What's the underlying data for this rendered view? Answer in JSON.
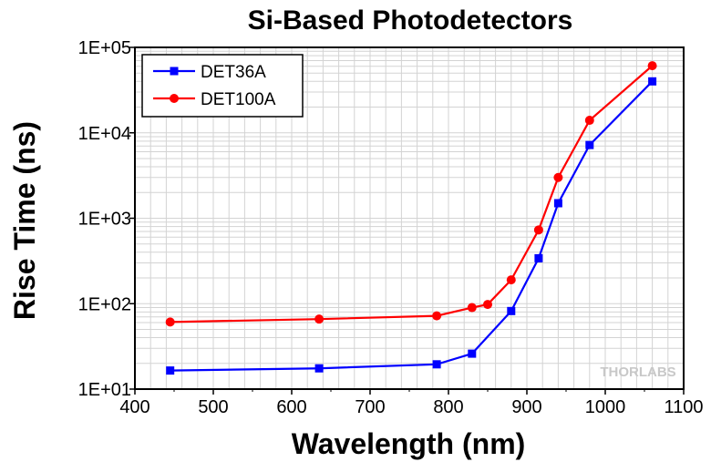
{
  "chart_data": {
    "type": "line",
    "title": "Si-Based Photodetectors",
    "xlabel": "Wavelength (nm)",
    "ylabel": "Rise Time (ns)",
    "xlim": [
      400,
      1100
    ],
    "ylim": [
      10,
      100000
    ],
    "yscale": "log",
    "grid": true,
    "legend_position": "top-left",
    "x_ticks": [
      400,
      500,
      600,
      700,
      800,
      900,
      1000,
      1100
    ],
    "y_ticks": [
      10,
      100,
      1000,
      10000,
      100000
    ],
    "y_tick_labels": [
      "1E+01",
      "1E+02",
      "1E+03",
      "1E+04",
      "1E+05"
    ],
    "series": [
      {
        "name": "DET36A",
        "color": "#0000ff",
        "marker": "square",
        "x": [
          445,
          635,
          785,
          830,
          880,
          915,
          940,
          980,
          1060
        ],
        "y": [
          16.5,
          17.5,
          19.5,
          26,
          82,
          340,
          1500,
          7200,
          40000
        ]
      },
      {
        "name": "DET100A",
        "color": "#ff0000",
        "marker": "circle",
        "x": [
          445,
          635,
          785,
          830,
          850,
          880,
          915,
          940,
          980,
          1060
        ],
        "y": [
          61,
          66,
          72,
          90,
          98,
          190,
          730,
          3000,
          14000,
          61000
        ]
      }
    ],
    "watermark": "THORLABS"
  }
}
